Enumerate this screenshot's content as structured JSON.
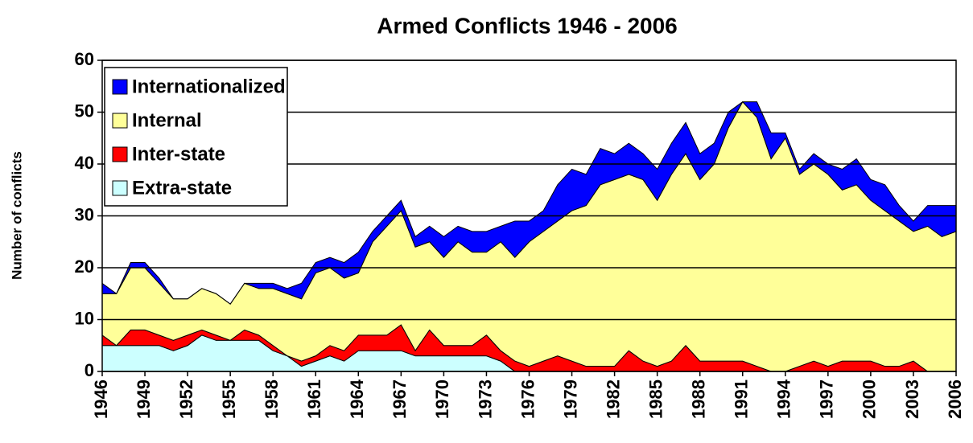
{
  "chart_data": {
    "type": "stacked_area",
    "title": "Armed Conflicts 1946 - 2006",
    "y_label": "Number of conflicts",
    "x": [
      1946,
      1947,
      1948,
      1949,
      1950,
      1951,
      1952,
      1953,
      1954,
      1955,
      1956,
      1957,
      1958,
      1959,
      1960,
      1961,
      1962,
      1963,
      1964,
      1965,
      1966,
      1967,
      1968,
      1969,
      1970,
      1971,
      1972,
      1973,
      1974,
      1975,
      1976,
      1977,
      1978,
      1979,
      1980,
      1981,
      1982,
      1983,
      1984,
      1985,
      1986,
      1987,
      1988,
      1989,
      1990,
      1991,
      1992,
      1993,
      1994,
      1995,
      1996,
      1997,
      1998,
      1999,
      2000,
      2001,
      2002,
      2003,
      2004,
      2005,
      2006
    ],
    "xlim": [
      1946,
      2006
    ],
    "xticks": [
      1946,
      1949,
      1952,
      1955,
      1958,
      1961,
      1964,
      1967,
      1970,
      1973,
      1976,
      1979,
      1982,
      1985,
      1988,
      1991,
      1994,
      1997,
      2000,
      2003,
      2006
    ],
    "ylim": [
      0,
      60
    ],
    "yticks": [
      0,
      10,
      20,
      30,
      40,
      50,
      60
    ],
    "grid": true,
    "legend": "upper left",
    "series": [
      {
        "name": "Extra-state",
        "color": "#ccffff",
        "values": [
          5,
          5,
          5,
          5,
          5,
          4,
          5,
          7,
          6,
          6,
          6,
          6,
          4,
          3,
          1,
          2,
          3,
          2,
          4,
          4,
          4,
          4,
          3,
          3,
          3,
          3,
          3,
          3,
          2,
          0,
          0,
          0,
          0,
          0,
          0,
          0,
          0,
          0,
          0,
          0,
          0,
          0,
          0,
          0,
          0,
          0,
          0,
          0,
          0,
          0,
          0,
          0,
          0,
          0,
          0,
          0,
          0,
          0,
          0,
          0,
          0
        ]
      },
      {
        "name": "Inter-state",
        "color": "#ff0000",
        "values": [
          2,
          0,
          3,
          3,
          2,
          2,
          2,
          1,
          1,
          0,
          2,
          1,
          1,
          0,
          1,
          1,
          2,
          2,
          3,
          3,
          3,
          5,
          1,
          5,
          2,
          2,
          2,
          4,
          2,
          2,
          1,
          2,
          3,
          2,
          1,
          1,
          1,
          4,
          2,
          1,
          2,
          5,
          2,
          2,
          2,
          2,
          1,
          0,
          0,
          1,
          2,
          1,
          2,
          2,
          2,
          1,
          1,
          2,
          0,
          0,
          0
        ]
      },
      {
        "name": "Internal",
        "color": "#ffff99",
        "values": [
          8,
          10,
          12,
          12,
          10,
          8,
          7,
          8,
          8,
          7,
          9,
          9,
          11,
          12,
          12,
          16,
          15,
          14,
          12,
          18,
          21,
          22,
          20,
          17,
          17,
          20,
          18,
          16,
          21,
          20,
          24,
          25,
          26,
          29,
          31,
          35,
          36,
          34,
          35,
          32,
          36,
          37,
          35,
          38,
          45,
          50,
          48,
          41,
          45,
          37,
          38,
          37,
          33,
          34,
          31,
          30,
          28,
          25,
          28,
          26,
          27
        ]
      },
      {
        "name": "Internationalized",
        "color": "#0000ff",
        "values": [
          2,
          0,
          1,
          1,
          1,
          0,
          0,
          0,
          0,
          0,
          0,
          1,
          1,
          1,
          3,
          2,
          2,
          3,
          4,
          2,
          2,
          2,
          2,
          3,
          4,
          3,
          4,
          4,
          3,
          7,
          4,
          4,
          7,
          8,
          6,
          7,
          5,
          6,
          5,
          6,
          6,
          6,
          5,
          4,
          3,
          0,
          3,
          5,
          1,
          1,
          2,
          2,
          4,
          5,
          4,
          5,
          3,
          2,
          4,
          6,
          5
        ]
      }
    ]
  }
}
